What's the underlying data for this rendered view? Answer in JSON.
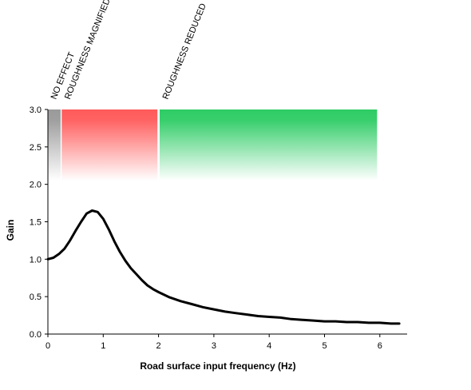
{
  "chart_data": {
    "type": "line",
    "title": "",
    "xlabel": "Road surface input frequency (Hz)",
    "ylabel": "Gain",
    "xlim": [
      0,
      6.5
    ],
    "ylim": [
      0,
      3
    ],
    "xticks": [
      "0",
      "1",
      "2",
      "3",
      "4",
      "5",
      "6"
    ],
    "yticks": [
      "0.0",
      "0.5",
      "1.0",
      "1.5",
      "2.0",
      "2.5",
      "3.0"
    ],
    "grid": false,
    "bands": [
      {
        "label": "NO EFFECT",
        "x0": 0.0,
        "x1": 0.23,
        "y0": 2.05,
        "y1": 3.0,
        "color": "#9a9a9a"
      },
      {
        "label": "ROUGHNESS MAGNIFIED",
        "x0": 0.25,
        "x1": 1.98,
        "y0": 2.05,
        "y1": 3.0,
        "color": "#ff5a5a"
      },
      {
        "label": "ROUGHNESS REDUCED",
        "x0": 2.02,
        "x1": 5.95,
        "y0": 2.05,
        "y1": 3.0,
        "color": "#2ecc65"
      }
    ],
    "series": [
      {
        "color": "#000000",
        "x": [
          0,
          0.1,
          0.2,
          0.3,
          0.4,
          0.5,
          0.6,
          0.7,
          0.8,
          0.9,
          1.0,
          1.1,
          1.2,
          1.3,
          1.4,
          1.5,
          1.6,
          1.7,
          1.8,
          1.9,
          2.0,
          2.2,
          2.4,
          2.6,
          2.8,
          3.0,
          3.2,
          3.4,
          3.6,
          3.8,
          4.0,
          4.2,
          4.4,
          4.6,
          4.8,
          5.0,
          5.2,
          5.4,
          5.6,
          5.8,
          6.0,
          6.2,
          6.35
        ],
        "values": [
          1.0,
          1.02,
          1.07,
          1.14,
          1.25,
          1.38,
          1.5,
          1.61,
          1.65,
          1.63,
          1.54,
          1.4,
          1.24,
          1.1,
          0.98,
          0.88,
          0.8,
          0.72,
          0.65,
          0.6,
          0.56,
          0.49,
          0.44,
          0.4,
          0.36,
          0.33,
          0.3,
          0.28,
          0.26,
          0.24,
          0.23,
          0.22,
          0.2,
          0.19,
          0.18,
          0.17,
          0.17,
          0.16,
          0.16,
          0.15,
          0.15,
          0.14,
          0.14
        ]
      }
    ]
  }
}
